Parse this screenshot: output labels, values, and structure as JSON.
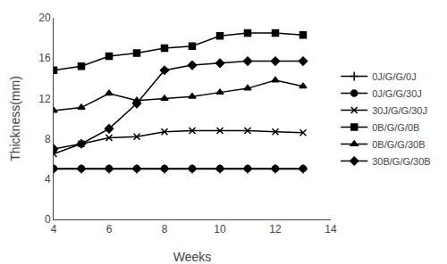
{
  "chart_data": {
    "type": "line",
    "x": [
      4,
      5,
      6,
      7,
      8,
      9,
      10,
      11,
      12,
      13
    ],
    "series": [
      {
        "name": "0J/G/G/0J",
        "color": "#000000",
        "marker": "plus",
        "values": [
          5.0,
          5.0,
          5.0,
          5.0,
          5.0,
          5.0,
          5.0,
          5.0,
          5.0,
          5.0
        ]
      },
      {
        "name": "0J/G/G/30J",
        "color": "#000000",
        "marker": "circle",
        "values": [
          5.05,
          5.05,
          5.05,
          5.05,
          5.05,
          5.05,
          5.05,
          5.05,
          5.05,
          5.05
        ]
      },
      {
        "name": "30J/G/G/30J",
        "color": "#000000",
        "marker": "x",
        "values": [
          6.5,
          7.5,
          8.1,
          8.2,
          8.7,
          8.8,
          8.8,
          8.8,
          8.7,
          8.6
        ]
      },
      {
        "name": "0B/G/G/0B",
        "color": "#000000",
        "marker": "square",
        "values": [
          14.8,
          15.2,
          16.2,
          16.5,
          17.0,
          17.2,
          18.2,
          18.5,
          18.5,
          18.3
        ]
      },
      {
        "name": "0B/G/G/30B",
        "color": "#000000",
        "marker": "triangle-up",
        "values": [
          10.8,
          11.1,
          12.5,
          11.8,
          12.0,
          12.2,
          12.6,
          13.0,
          13.8,
          13.2
        ]
      },
      {
        "name": "30B/G/G/30B",
        "color": "#000000",
        "marker": "diamond",
        "values": [
          7.0,
          7.5,
          9.0,
          11.5,
          14.8,
          15.3,
          15.5,
          15.7,
          15.7,
          15.7
        ]
      }
    ],
    "xlabel": "Weeks",
    "ylabel": "Thickness(mm)",
    "xlim": [
      4,
      14
    ],
    "ylim": [
      0,
      20
    ],
    "xticks": [
      4,
      6,
      8,
      10,
      12,
      14
    ],
    "yticks": [
      0,
      4,
      8,
      12,
      16,
      20
    ],
    "grid": false,
    "legend": "right"
  }
}
